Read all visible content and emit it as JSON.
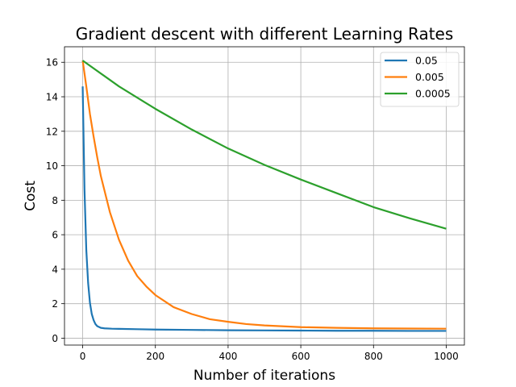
{
  "chart_data": {
    "type": "line",
    "title": "Gradient descent with different Learning Rates",
    "xlabel": "Number of iterations",
    "ylabel": "Cost",
    "xlim": [
      -50,
      1050
    ],
    "ylim": [
      -0.4,
      16.9
    ],
    "xticks": [
      0,
      200,
      400,
      600,
      800,
      1000
    ],
    "yticks": [
      0,
      2,
      4,
      6,
      8,
      10,
      12,
      14,
      16
    ],
    "grid": true,
    "legend_position": "top-right",
    "series": [
      {
        "name": "0.05",
        "color": "#1f77b4",
        "points": [
          [
            0,
            14.6
          ],
          [
            5,
            8.6
          ],
          [
            10,
            5.1
          ],
          [
            15,
            3.2
          ],
          [
            20,
            2.05
          ],
          [
            25,
            1.4
          ],
          [
            30,
            1.05
          ],
          [
            35,
            0.82
          ],
          [
            40,
            0.7
          ],
          [
            50,
            0.6
          ],
          [
            60,
            0.57
          ],
          [
            80,
            0.55
          ],
          [
            100,
            0.54
          ],
          [
            150,
            0.52
          ],
          [
            200,
            0.5
          ],
          [
            300,
            0.48
          ],
          [
            400,
            0.46
          ],
          [
            500,
            0.45
          ],
          [
            600,
            0.44
          ],
          [
            700,
            0.43
          ],
          [
            800,
            0.43
          ],
          [
            900,
            0.42
          ],
          [
            1000,
            0.42
          ]
        ]
      },
      {
        "name": "0.005",
        "color": "#ff7f0e",
        "points": [
          [
            0,
            16.1
          ],
          [
            10,
            14.6
          ],
          [
            20,
            13.0
          ],
          [
            30,
            11.7
          ],
          [
            40,
            10.5
          ],
          [
            50,
            9.4
          ],
          [
            75,
            7.3
          ],
          [
            100,
            5.7
          ],
          [
            125,
            4.5
          ],
          [
            150,
            3.6
          ],
          [
            175,
            3.0
          ],
          [
            200,
            2.5
          ],
          [
            250,
            1.8
          ],
          [
            300,
            1.4
          ],
          [
            350,
            1.1
          ],
          [
            400,
            0.95
          ],
          [
            450,
            0.82
          ],
          [
            500,
            0.74
          ],
          [
            600,
            0.64
          ],
          [
            700,
            0.6
          ],
          [
            800,
            0.57
          ],
          [
            900,
            0.56
          ],
          [
            1000,
            0.55
          ]
        ]
      },
      {
        "name": "0.0005",
        "color": "#2ca02c",
        "points": [
          [
            0,
            16.1
          ],
          [
            100,
            14.6
          ],
          [
            200,
            13.3
          ],
          [
            300,
            12.1
          ],
          [
            400,
            11.0
          ],
          [
            500,
            10.05
          ],
          [
            600,
            9.2
          ],
          [
            700,
            8.4
          ],
          [
            800,
            7.6
          ],
          [
            900,
            6.95
          ],
          [
            1000,
            6.35
          ]
        ]
      }
    ]
  }
}
